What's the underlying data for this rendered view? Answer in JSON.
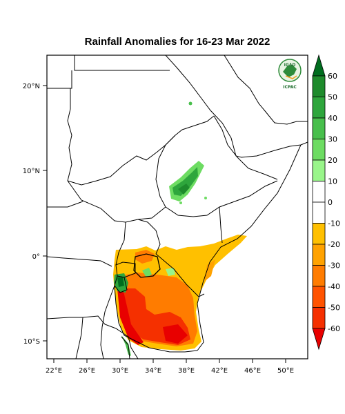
{
  "map": {
    "title": "Rainfall Anomalies for 16-23 Mar 2022",
    "lon_ticks": [
      "22°E",
      "26°E",
      "30°E",
      "34°E",
      "38°E",
      "42°E",
      "46°E",
      "50°E"
    ],
    "lat_ticks": [
      "20°N",
      "10°N",
      "0°",
      "10°S"
    ],
    "lon_range": [
      21,
      52
    ],
    "lat_range": [
      -11.5,
      23.5
    ]
  },
  "logo": {
    "name": "IGAD",
    "caption": "ICPAC"
  },
  "colorbar": {
    "labels": [
      "60",
      "50",
      "40",
      "30",
      "20",
      "10",
      "0",
      "-10",
      "-20",
      "-30",
      "-40",
      "-50",
      "-60"
    ],
    "colors": [
      "#006d1f",
      "#1e8b2c",
      "#2ea63c",
      "#48bf4c",
      "#6ddc62",
      "#99f58a",
      "#ffffff",
      "#ffffff",
      "#ffc000",
      "#ffa200",
      "#ff7c00",
      "#ff5300",
      "#f53000",
      "#e80000"
    ]
  }
}
